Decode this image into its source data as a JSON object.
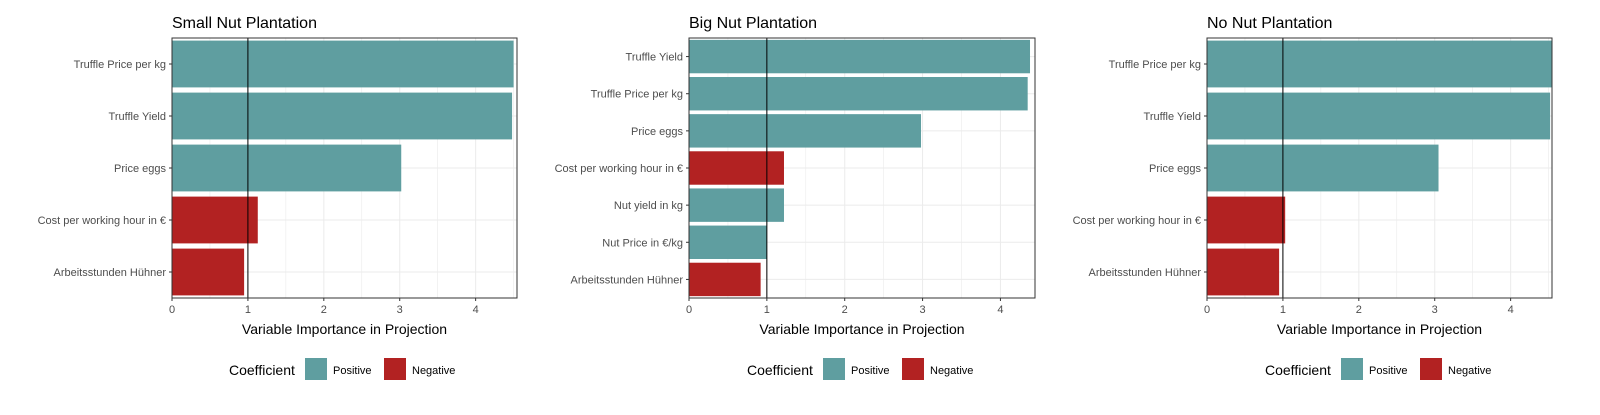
{
  "colors": {
    "positive": "#5F9EA0",
    "negative": "#B22222"
  },
  "chart_data": [
    {
      "type": "bar",
      "orientation": "horizontal",
      "title": "Small Nut Plantation",
      "xlabel": "Variable Importance in Projection",
      "ylabel": "",
      "xlim": [
        0,
        4.5
      ],
      "x_ticks": [
        0,
        1,
        2,
        3,
        4
      ],
      "reference_line": 1,
      "grid": true,
      "categories": [
        "Truffle Price per kg",
        "Truffle Yield",
        "Price eggs",
        "Cost per working hour in €",
        "Arbeitsstunden Hühner"
      ],
      "values": [
        4.5,
        4.48,
        3.02,
        1.13,
        0.95
      ],
      "coefficient": [
        "Positive",
        "Positive",
        "Positive",
        "Negative",
        "Negative"
      ],
      "legend": {
        "title": "Coefficient",
        "entries": [
          "Positive",
          "Negative"
        ],
        "position": "bottom"
      }
    },
    {
      "type": "bar",
      "orientation": "horizontal",
      "title": "Big Nut Plantation",
      "xlabel": "Variable Importance in Projection",
      "ylabel": "",
      "xlim": [
        0,
        4.4
      ],
      "x_ticks": [
        0,
        1,
        2,
        3,
        4
      ],
      "reference_line": 1,
      "grid": true,
      "categories": [
        "Truffle Yield",
        "Truffle Price per kg",
        "Price eggs",
        "Cost per working hour in €",
        "Nut yield in kg",
        "Nut Price in €/kg",
        "Arbeitsstunden Hühner"
      ],
      "values": [
        4.38,
        4.35,
        2.98,
        1.22,
        1.22,
        1.0,
        0.92
      ],
      "coefficient": [
        "Positive",
        "Positive",
        "Positive",
        "Negative",
        "Positive",
        "Positive",
        "Negative"
      ],
      "legend": {
        "title": "Coefficient",
        "entries": [
          "Positive",
          "Negative"
        ],
        "position": "bottom"
      }
    },
    {
      "type": "bar",
      "orientation": "horizontal",
      "title": "No Nut Plantation",
      "xlabel": "Variable Importance in Projection",
      "ylabel": "",
      "xlim": [
        0,
        4.5
      ],
      "x_ticks": [
        0,
        1,
        2,
        3,
        4
      ],
      "reference_line": 1,
      "grid": true,
      "categories": [
        "Truffle Price per kg",
        "Truffle Yield",
        "Price eggs",
        "Cost per working hour in €",
        "Arbeitsstunden Hühner"
      ],
      "values": [
        4.55,
        4.52,
        3.05,
        1.03,
        0.95
      ],
      "coefficient": [
        "Positive",
        "Positive",
        "Positive",
        "Negative",
        "Negative"
      ],
      "legend": {
        "title": "Coefficient",
        "entries": [
          "Positive",
          "Negative"
        ],
        "position": "bottom"
      }
    }
  ]
}
